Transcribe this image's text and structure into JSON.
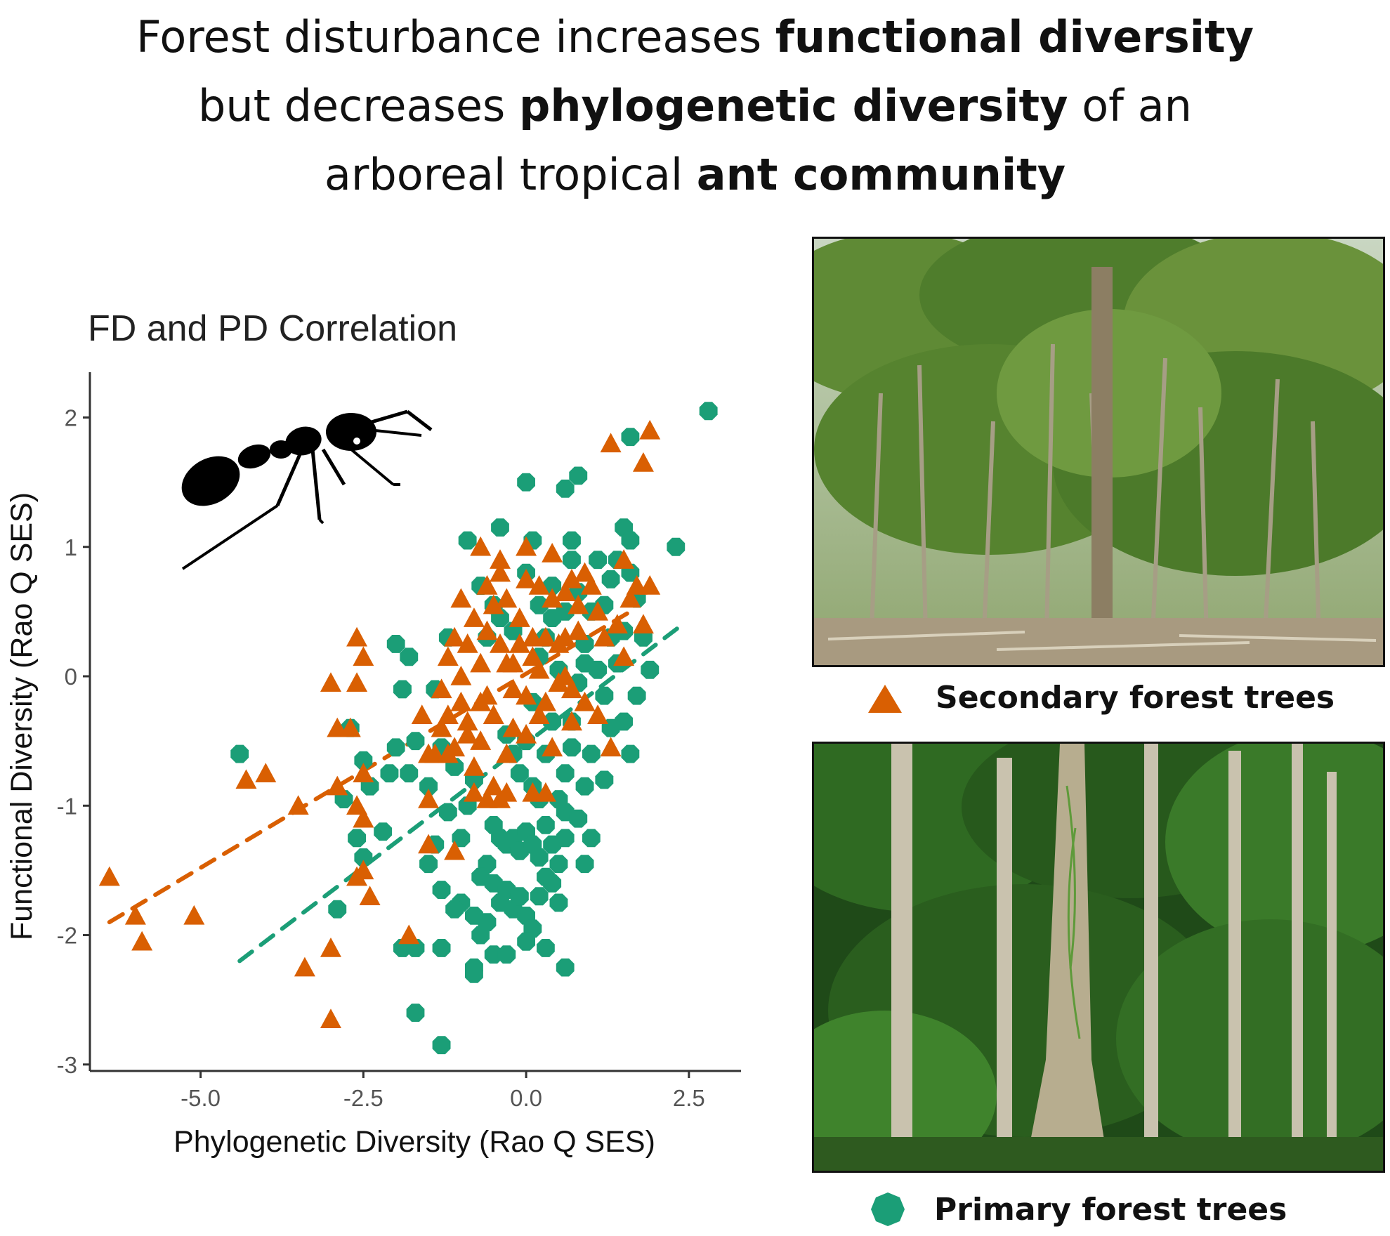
{
  "headline": {
    "line1_plain": "Forest disturbance increases ",
    "line1_bold": "functional diversity",
    "line2_plain_a": "but decreases ",
    "line2_bold": "phylogenetic diversity",
    "line2_plain_b": " of an",
    "line3_plain": "arboreal tropical ",
    "line3_bold": "ant community"
  },
  "legend": {
    "secondary_label": "Secondary forest trees",
    "primary_label": "Primary forest trees"
  },
  "colors": {
    "secondary": "#d95f02",
    "primary": "#1b9e77",
    "axis": "#333333",
    "frame": "#111111"
  },
  "chart_data": {
    "type": "scatter",
    "title": "FD and PD Correlation",
    "xlabel": "Phylogenetic Diversity (Rao Q SES)",
    "ylabel": "Functional Diversity (Rao Q SES)",
    "xlim": [
      -6.7,
      3.3
    ],
    "ylim": [
      -3.05,
      2.35
    ],
    "xticks": [
      -5.0,
      -2.5,
      0.0,
      2.5
    ],
    "xtick_labels": [
      "-5.0",
      "-2.5",
      "0.0",
      "2.5"
    ],
    "yticks": [
      -3,
      -2,
      -1,
      0,
      1,
      2
    ],
    "ytick_labels": [
      "-3",
      "-2",
      "-1",
      "0",
      "1",
      "2"
    ],
    "grid": false,
    "series": [
      {
        "name": "Secondary forest trees",
        "marker": "triangle",
        "color": "#d95f02",
        "trend": {
          "style": "dashed",
          "x": [
            -6.4,
            1.6
          ],
          "y": [
            -1.9,
            0.5
          ]
        },
        "points": [
          [
            -6.4,
            -1.55
          ],
          [
            -6.0,
            -1.85
          ],
          [
            -5.9,
            -2.05
          ],
          [
            -5.1,
            -1.85
          ],
          [
            -4.3,
            -0.8
          ],
          [
            -4.0,
            -0.75
          ],
          [
            -3.5,
            -1.0
          ],
          [
            -3.0,
            -2.1
          ],
          [
            -3.0,
            -2.65
          ],
          [
            -3.4,
            -2.25
          ],
          [
            -2.9,
            -0.85
          ],
          [
            -2.9,
            -0.4
          ],
          [
            -2.6,
            0.3
          ],
          [
            -2.5,
            0.15
          ],
          [
            -2.6,
            -0.05
          ],
          [
            -2.6,
            -1.0
          ],
          [
            -2.5,
            -1.1
          ],
          [
            -2.5,
            -0.75
          ],
          [
            -2.6,
            -1.55
          ],
          [
            -2.5,
            -1.5
          ],
          [
            -2.4,
            -1.7
          ],
          [
            -3.0,
            -0.05
          ],
          [
            -2.7,
            -0.4
          ],
          [
            -1.8,
            -2.0
          ],
          [
            -1.6,
            -0.3
          ],
          [
            -1.5,
            -0.6
          ],
          [
            -1.4,
            -0.6
          ],
          [
            -1.3,
            -0.4
          ],
          [
            -1.2,
            -0.3
          ],
          [
            -1.1,
            -0.55
          ],
          [
            -1.0,
            -0.2
          ],
          [
            -0.9,
            -0.45
          ],
          [
            -0.8,
            -0.7
          ],
          [
            -0.7,
            -0.5
          ],
          [
            -0.6,
            -0.15
          ],
          [
            -1.2,
            0.15
          ],
          [
            -1.0,
            0.0
          ],
          [
            -0.9,
            0.25
          ],
          [
            -0.8,
            0.45
          ],
          [
            -0.7,
            0.1
          ],
          [
            -0.6,
            0.35
          ],
          [
            -0.5,
            0.55
          ],
          [
            -0.4,
            0.8
          ],
          [
            -0.4,
            0.25
          ],
          [
            -0.3,
            0.6
          ],
          [
            -0.2,
            0.1
          ],
          [
            -0.1,
            0.45
          ],
          [
            0.0,
            0.75
          ],
          [
            0.1,
            0.3
          ],
          [
            0.2,
            0.05
          ],
          [
            0.3,
            -0.2
          ],
          [
            0.4,
            0.6
          ],
          [
            0.5,
            0.25
          ],
          [
            0.6,
            0.0
          ],
          [
            0.7,
            -0.35
          ],
          [
            0.8,
            0.35
          ],
          [
            0.9,
            -0.2
          ],
          [
            1.0,
            0.7
          ],
          [
            1.1,
            -0.3
          ],
          [
            1.2,
            0.3
          ],
          [
            1.3,
            -0.55
          ],
          [
            1.4,
            0.4
          ],
          [
            1.5,
            0.15
          ],
          [
            0.5,
            -0.05
          ],
          [
            0.3,
            0.3
          ],
          [
            -0.2,
            -0.4
          ],
          [
            -0.3,
            -0.6
          ],
          [
            0.0,
            -0.45
          ],
          [
            0.2,
            -0.3
          ],
          [
            0.4,
            -0.55
          ],
          [
            -0.5,
            -0.85
          ],
          [
            -0.6,
            -0.95
          ],
          [
            -0.4,
            -0.95
          ],
          [
            -0.3,
            -0.9
          ],
          [
            0.1,
            -0.9
          ],
          [
            0.3,
            -0.9
          ],
          [
            -0.8,
            -0.9
          ],
          [
            0.6,
            0.65
          ],
          [
            0.7,
            0.75
          ],
          [
            0.8,
            0.55
          ],
          [
            0.9,
            0.8
          ],
          [
            1.1,
            0.5
          ],
          [
            1.5,
            0.9
          ],
          [
            1.6,
            0.6
          ],
          [
            1.7,
            0.7
          ],
          [
            1.8,
            0.4
          ],
          [
            1.3,
            1.8
          ],
          [
            1.8,
            1.65
          ],
          [
            1.9,
            1.9
          ],
          [
            1.9,
            0.7
          ],
          [
            -0.7,
            1.0
          ],
          [
            -0.4,
            0.9
          ],
          [
            0.0,
            1.0
          ],
          [
            0.4,
            0.95
          ],
          [
            -1.0,
            0.6
          ],
          [
            -1.1,
            0.3
          ],
          [
            -1.3,
            -0.1
          ],
          [
            -1.5,
            -0.95
          ],
          [
            -0.5,
            -0.3
          ],
          [
            -0.2,
            -0.1
          ],
          [
            0.1,
            0.15
          ],
          [
            -0.7,
            -0.2
          ],
          [
            -0.9,
            -0.35
          ],
          [
            -1.2,
            -0.6
          ],
          [
            -1.1,
            -1.35
          ],
          [
            -1.5,
            -1.3
          ],
          [
            -0.6,
            0.7
          ],
          [
            -0.1,
            0.25
          ],
          [
            0.2,
            0.7
          ],
          [
            0.6,
            0.3
          ],
          [
            0.7,
            -0.1
          ],
          [
            -0.3,
            0.1
          ],
          [
            0.0,
            -0.15
          ]
        ]
      },
      {
        "name": "Primary forest trees",
        "marker": "octagon",
        "color": "#1b9e77",
        "trend": {
          "style": "dashed",
          "x": [
            -4.4,
            2.4
          ],
          "y": [
            -2.2,
            0.4
          ]
        },
        "points": [
          [
            2.8,
            2.05
          ],
          [
            2.3,
            1.0
          ],
          [
            1.6,
            1.85
          ],
          [
            1.5,
            1.15
          ],
          [
            1.6,
            1.05
          ],
          [
            1.6,
            0.8
          ],
          [
            1.7,
            0.6
          ],
          [
            1.8,
            0.3
          ],
          [
            1.9,
            0.05
          ],
          [
            1.4,
            0.9
          ],
          [
            1.3,
            0.75
          ],
          [
            1.2,
            0.55
          ],
          [
            1.1,
            0.9
          ],
          [
            1.0,
            0.5
          ],
          [
            0.9,
            0.25
          ],
          [
            0.8,
            0.65
          ],
          [
            0.7,
            1.05
          ],
          [
            0.8,
            1.55
          ],
          [
            0.6,
            1.45
          ],
          [
            0.0,
            1.5
          ],
          [
            0.6,
            0.5
          ],
          [
            0.5,
            0.05
          ],
          [
            0.4,
            0.45
          ],
          [
            0.3,
            0.3
          ],
          [
            0.2,
            0.15
          ],
          [
            1.5,
            -0.35
          ],
          [
            1.6,
            -0.6
          ],
          [
            1.2,
            -0.8
          ],
          [
            1.0,
            -0.6
          ],
          [
            0.9,
            -0.85
          ],
          [
            0.7,
            -0.35
          ],
          [
            0.6,
            -1.05
          ],
          [
            -0.4,
            1.15
          ],
          [
            -0.9,
            1.05
          ],
          [
            -0.7,
            0.7
          ],
          [
            -0.5,
            0.55
          ],
          [
            -0.3,
            -0.45
          ],
          [
            -0.2,
            -0.6
          ],
          [
            -0.1,
            -0.75
          ],
          [
            0.0,
            -0.5
          ],
          [
            0.1,
            -0.85
          ],
          [
            0.2,
            -0.95
          ],
          [
            0.3,
            -0.6
          ],
          [
            0.4,
            -0.35
          ],
          [
            0.5,
            -0.95
          ],
          [
            0.6,
            -0.75
          ],
          [
            -0.5,
            -1.15
          ],
          [
            -0.4,
            -1.25
          ],
          [
            -0.3,
            -1.3
          ],
          [
            -0.2,
            -1.25
          ],
          [
            -0.1,
            -1.35
          ],
          [
            0.0,
            -1.2
          ],
          [
            0.1,
            -1.3
          ],
          [
            0.2,
            -1.4
          ],
          [
            0.3,
            -1.15
          ],
          [
            0.4,
            -1.3
          ],
          [
            0.5,
            -1.45
          ],
          [
            0.6,
            -1.25
          ],
          [
            -0.6,
            -1.45
          ],
          [
            -0.7,
            -1.55
          ],
          [
            -0.5,
            -1.6
          ],
          [
            -0.4,
            -1.75
          ],
          [
            -0.3,
            -1.65
          ],
          [
            -0.2,
            -1.8
          ],
          [
            -0.1,
            -1.7
          ],
          [
            0.0,
            -1.85
          ],
          [
            0.1,
            -1.95
          ],
          [
            0.2,
            -1.7
          ],
          [
            0.3,
            -1.55
          ],
          [
            0.4,
            -1.6
          ],
          [
            0.5,
            -1.75
          ],
          [
            -0.6,
            -1.9
          ],
          [
            -0.7,
            -2.0
          ],
          [
            -0.8,
            -1.85
          ],
          [
            -0.5,
            -2.15
          ],
          [
            -0.3,
            -2.15
          ],
          [
            0.0,
            -2.05
          ],
          [
            0.3,
            -2.1
          ],
          [
            0.6,
            -2.25
          ],
          [
            -0.8,
            -2.3
          ],
          [
            -0.8,
            -2.25
          ],
          [
            -1.0,
            -1.75
          ],
          [
            -1.1,
            -1.8
          ],
          [
            -1.3,
            -1.65
          ],
          [
            -1.5,
            -1.45
          ],
          [
            -1.4,
            -1.3
          ],
          [
            -1.2,
            -1.05
          ],
          [
            -1.1,
            -0.7
          ],
          [
            -1.3,
            -0.55
          ],
          [
            -1.5,
            -0.85
          ],
          [
            -1.7,
            -0.5
          ],
          [
            -1.8,
            -0.75
          ],
          [
            -2.0,
            -0.55
          ],
          [
            -2.1,
            -0.75
          ],
          [
            -2.2,
            -1.2
          ],
          [
            -2.4,
            -0.85
          ],
          [
            -2.5,
            -0.65
          ],
          [
            -2.6,
            -1.25
          ],
          [
            -2.5,
            -1.4
          ],
          [
            -2.7,
            -0.4
          ],
          [
            -2.8,
            -0.95
          ],
          [
            -2.9,
            -1.8
          ],
          [
            -1.8,
            0.15
          ],
          [
            -2.0,
            0.25
          ],
          [
            -1.9,
            -0.1
          ],
          [
            -1.4,
            -0.1
          ],
          [
            -1.2,
            0.3
          ],
          [
            -4.4,
            -0.6
          ],
          [
            -1.9,
            -2.1
          ],
          [
            -1.7,
            -2.1
          ],
          [
            -1.7,
            -2.6
          ],
          [
            -1.3,
            -2.85
          ],
          [
            -1.3,
            -2.1
          ],
          [
            -1.0,
            -1.25
          ],
          [
            -0.9,
            -1.0
          ],
          [
            -0.8,
            -0.8
          ],
          [
            1.1,
            0.05
          ],
          [
            1.3,
            0.3
          ],
          [
            1.4,
            0.1
          ],
          [
            1.2,
            -0.15
          ],
          [
            0.9,
            0.1
          ],
          [
            1.7,
            -0.15
          ],
          [
            0.8,
            -0.05
          ],
          [
            0.2,
            0.55
          ],
          [
            0.0,
            0.8
          ],
          [
            -0.2,
            0.35
          ],
          [
            0.1,
            -0.2
          ],
          [
            -0.6,
            0.3
          ],
          [
            1.0,
            -1.25
          ],
          [
            0.9,
            -1.45
          ],
          [
            0.8,
            -1.1
          ],
          [
            0.7,
            -0.55
          ],
          [
            -0.4,
            0.45
          ],
          [
            0.1,
            1.05
          ],
          [
            0.4,
            0.7
          ],
          [
            0.7,
            0.9
          ],
          [
            1.5,
            0.35
          ],
          [
            1.3,
            -0.4
          ]
        ]
      }
    ]
  }
}
